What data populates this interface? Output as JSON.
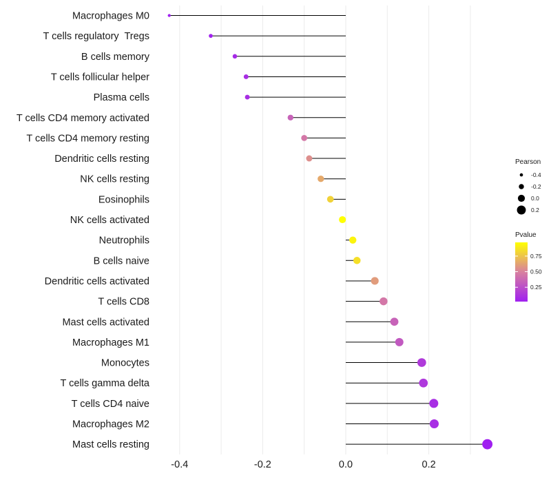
{
  "chart_data": {
    "type": "lollipop",
    "title": "",
    "xlabel": "",
    "ylabel": "",
    "xlim": [
      -0.43,
      0.35
    ],
    "xticks": [
      -0.4,
      -0.2,
      0.0,
      0.2
    ],
    "xtick_labels": [
      "-0.4",
      "-0.2",
      "0.0",
      "0.2"
    ],
    "categories": [
      "Macrophages M0",
      "T cells regulatory  Tregs",
      "B cells memory",
      "T cells follicular helper",
      "Plasma cells",
      "T cells CD4 memory activated",
      "T cells CD4 memory resting",
      "Dendritic cells resting",
      "NK cells resting",
      "Eosinophils",
      "NK cells activated",
      "Neutrophils",
      "B cells naive",
      "Dendritic cells activated",
      "T cells CD8",
      "Mast cells activated",
      "Macrophages M1",
      "Monocytes",
      "T cells gamma delta",
      "T cells CD4 naive",
      "Macrophages M2",
      "Mast cells resting"
    ],
    "pearson": [
      -0.425,
      -0.325,
      -0.267,
      -0.24,
      -0.237,
      -0.133,
      -0.1,
      -0.088,
      -0.06,
      -0.037,
      -0.008,
      0.017,
      0.027,
      0.07,
      0.091,
      0.117,
      0.129,
      0.183,
      0.187,
      0.212,
      0.213,
      0.341
    ],
    "pvalue": [
      0.01,
      0.03,
      0.07,
      0.09,
      0.09,
      0.35,
      0.45,
      0.55,
      0.65,
      0.8,
      0.97,
      0.93,
      0.85,
      0.6,
      0.45,
      0.35,
      0.3,
      0.15,
      0.14,
      0.09,
      0.09,
      0.02
    ],
    "size_legend": {
      "title": "Pearson",
      "values": [
        -0.4,
        -0.2,
        0.0,
        0.2
      ],
      "labels": [
        "-0.4",
        "-0.2",
        "0.0",
        "0.2"
      ]
    },
    "color_legend": {
      "title": "Pvalue",
      "range": [
        0.02,
        0.97
      ],
      "ticks": [
        0.25,
        0.5,
        0.75
      ],
      "tick_labels": [
        "0.25",
        "0.50",
        "0.75"
      ],
      "low_color": "#a020f0",
      "mid_color": "#d8809f",
      "high_color": "#ffff00"
    },
    "grid": true,
    "stem_color": "#000000",
    "gridline_color": "#ebebeb"
  }
}
